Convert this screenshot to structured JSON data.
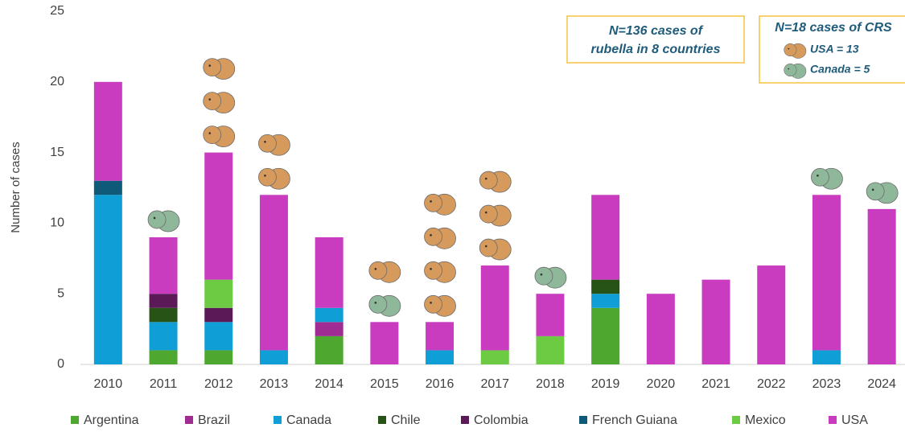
{
  "chart_data": {
    "type": "bar",
    "stacked": true,
    "y_label": "Number of cases",
    "ylim": [
      0,
      25
    ],
    "yticks": [
      0,
      5,
      10,
      15,
      20,
      25
    ],
    "grid": false,
    "categories": [
      "2010",
      "2011",
      "2012",
      "2013",
      "2014",
      "2015",
      "2016",
      "2017",
      "2018",
      "2019",
      "2020",
      "2021",
      "2022",
      "2023",
      "2024"
    ],
    "series": [
      {
        "name": "Argentina",
        "color": "#4ea72e",
        "values": [
          0,
          1,
          1,
          0,
          2,
          0,
          0,
          0,
          0,
          4,
          0,
          0,
          0,
          0,
          0
        ]
      },
      {
        "name": "Brazil",
        "color": "#a02b93",
        "values": [
          0,
          0,
          0,
          0,
          1,
          0,
          0,
          0,
          0,
          0,
          0,
          0,
          0,
          0,
          0
        ]
      },
      {
        "name": "Canada",
        "color": "#0f9ed5",
        "values": [
          12,
          2,
          2,
          1,
          1,
          0,
          1,
          0,
          0,
          1,
          0,
          0,
          0,
          1,
          0
        ]
      },
      {
        "name": "Chile",
        "color": "#275317",
        "values": [
          0,
          1,
          0,
          0,
          0,
          0,
          0,
          0,
          0,
          1,
          0,
          0,
          0,
          0,
          0
        ]
      },
      {
        "name": "Colombia",
        "color": "#5b1a57",
        "values": [
          0,
          1,
          1,
          0,
          0,
          0,
          0,
          0,
          0,
          0,
          0,
          0,
          0,
          0,
          0
        ]
      },
      {
        "name": "French Guiana",
        "color": "#0e5a78",
        "values": [
          1,
          0,
          0,
          0,
          0,
          0,
          0,
          0,
          0,
          0,
          0,
          0,
          0,
          0,
          0
        ]
      },
      {
        "name": "Mexico",
        "color": "#6ccb43",
        "values": [
          0,
          0,
          2,
          0,
          0,
          0,
          0,
          1,
          2,
          0,
          0,
          0,
          0,
          0,
          0
        ]
      },
      {
        "name": "USA",
        "color": "#c93cc0",
        "values": [
          7,
          4,
          9,
          11,
          5,
          3,
          2,
          6,
          3,
          6,
          5,
          6,
          7,
          11,
          11
        ]
      }
    ],
    "annotation": [
      "N=136 cases of",
      "rubella in 8 countries"
    ],
    "crs": {
      "title": "N=18 cases of CRS",
      "series": [
        {
          "label": "Canada = 5",
          "color": "#8fb89a",
          "values": [
            0,
            1,
            0,
            0,
            0,
            1,
            0,
            0,
            1,
            0,
            0,
            0,
            0,
            1,
            1
          ]
        },
        {
          "label": "USA = 13",
          "color": "#d69a5c",
          "values": [
            0,
            0,
            3,
            2,
            0,
            1,
            4,
            3,
            0,
            0,
            0,
            0,
            0,
            0,
            0
          ]
        }
      ]
    }
  }
}
